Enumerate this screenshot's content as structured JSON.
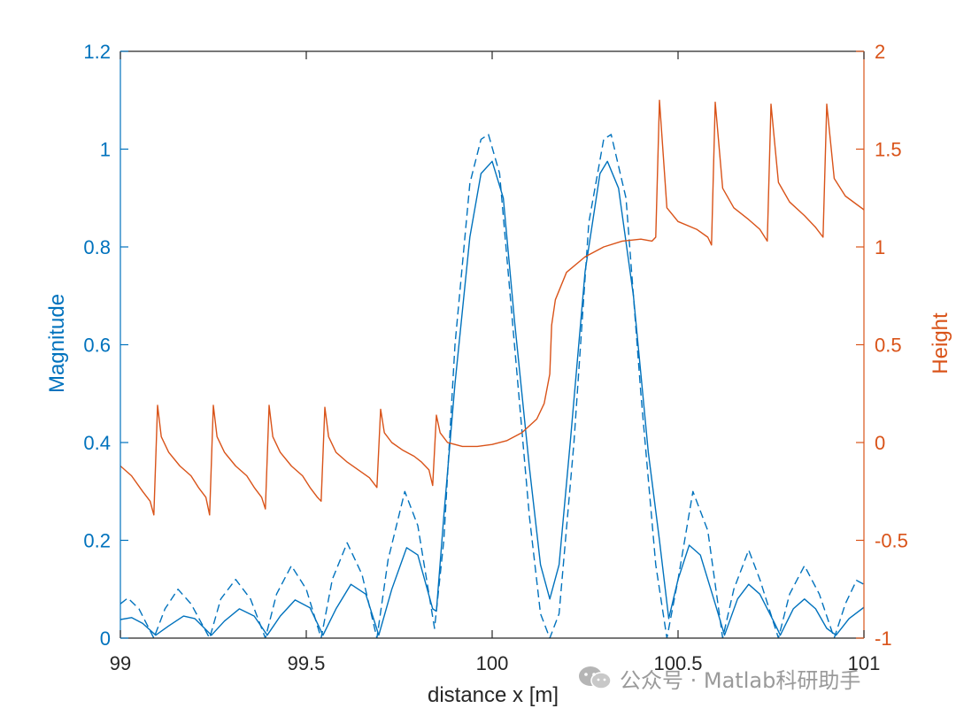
{
  "watermark": {
    "text": "公众号 · Matlab科研助手",
    "icon": "wechat-icon"
  },
  "chart_data": {
    "type": "line",
    "title": "",
    "xlabel": "distance x [m]",
    "ylabel_left": "Magnitude",
    "ylabel_right": "Height",
    "xlim": [
      99,
      101
    ],
    "ylim_left": [
      0,
      1.2
    ],
    "ylim_right": [
      -1,
      2
    ],
    "x_ticks": [
      "99",
      "99.5",
      "100",
      "100.5",
      "101"
    ],
    "y_left_ticks": [
      "0",
      "0.2",
      "0.4",
      "0.6",
      "0.8",
      "1",
      "1.2"
    ],
    "y_right_ticks": [
      "-1",
      "-0.5",
      "0",
      "0.5",
      "1",
      "1.5",
      "2"
    ],
    "grid": false,
    "colors": {
      "left": "#0072BD",
      "right": "#D95319",
      "axis": "#262626"
    },
    "series": [
      {
        "axis": "left",
        "style": "solid",
        "color": "#0072BD",
        "points": [
          [
            99.0,
            0.038
          ],
          [
            99.03,
            0.042
          ],
          [
            99.06,
            0.03
          ],
          [
            99.095,
            0.006
          ],
          [
            99.13,
            0.025
          ],
          [
            99.17,
            0.045
          ],
          [
            99.2,
            0.04
          ],
          [
            99.245,
            0.006
          ],
          [
            99.28,
            0.035
          ],
          [
            99.32,
            0.06
          ],
          [
            99.36,
            0.045
          ],
          [
            99.395,
            0.006
          ],
          [
            99.43,
            0.045
          ],
          [
            99.47,
            0.078
          ],
          [
            99.51,
            0.062
          ],
          [
            99.545,
            0.006
          ],
          [
            99.58,
            0.06
          ],
          [
            99.62,
            0.11
          ],
          [
            99.66,
            0.09
          ],
          [
            99.695,
            0.006
          ],
          [
            99.73,
            0.1
          ],
          [
            99.77,
            0.185
          ],
          [
            99.8,
            0.17
          ],
          [
            99.84,
            0.06
          ],
          [
            99.85,
            0.055
          ],
          [
            99.87,
            0.25
          ],
          [
            99.9,
            0.52
          ],
          [
            99.94,
            0.82
          ],
          [
            99.97,
            0.95
          ],
          [
            100.0,
            0.975
          ],
          [
            100.03,
            0.9
          ],
          [
            100.06,
            0.65
          ],
          [
            100.1,
            0.35
          ],
          [
            100.13,
            0.15
          ],
          [
            100.155,
            0.08
          ],
          [
            100.18,
            0.15
          ],
          [
            100.21,
            0.4
          ],
          [
            100.25,
            0.75
          ],
          [
            100.29,
            0.95
          ],
          [
            100.31,
            0.975
          ],
          [
            100.34,
            0.92
          ],
          [
            100.38,
            0.7
          ],
          [
            100.42,
            0.38
          ],
          [
            100.45,
            0.2
          ],
          [
            100.475,
            0.04
          ],
          [
            100.5,
            0.12
          ],
          [
            100.53,
            0.19
          ],
          [
            100.56,
            0.17
          ],
          [
            100.6,
            0.07
          ],
          [
            100.625,
            0.006
          ],
          [
            100.66,
            0.08
          ],
          [
            100.69,
            0.11
          ],
          [
            100.72,
            0.09
          ],
          [
            100.76,
            0.03
          ],
          [
            100.775,
            0.006
          ],
          [
            100.81,
            0.06
          ],
          [
            100.84,
            0.08
          ],
          [
            100.87,
            0.06
          ],
          [
            100.9,
            0.02
          ],
          [
            100.925,
            0.006
          ],
          [
            100.96,
            0.04
          ],
          [
            101.0,
            0.063
          ]
        ]
      },
      {
        "axis": "left",
        "style": "dashed",
        "color": "#0072BD",
        "points": [
          [
            99.0,
            0.07
          ],
          [
            99.02,
            0.082
          ],
          [
            99.05,
            0.06
          ],
          [
            99.09,
            0.0
          ],
          [
            99.12,
            0.06
          ],
          [
            99.155,
            0.1
          ],
          [
            99.19,
            0.07
          ],
          [
            99.24,
            0.0
          ],
          [
            99.27,
            0.08
          ],
          [
            99.31,
            0.12
          ],
          [
            99.35,
            0.08
          ],
          [
            99.39,
            0.0
          ],
          [
            99.42,
            0.09
          ],
          [
            99.46,
            0.148
          ],
          [
            99.5,
            0.1
          ],
          [
            99.54,
            0.0
          ],
          [
            99.57,
            0.12
          ],
          [
            99.61,
            0.195
          ],
          [
            99.65,
            0.13
          ],
          [
            99.69,
            0.0
          ],
          [
            99.72,
            0.16
          ],
          [
            99.765,
            0.3
          ],
          [
            99.8,
            0.23
          ],
          [
            99.845,
            0.02
          ],
          [
            99.87,
            0.2
          ],
          [
            99.9,
            0.6
          ],
          [
            99.94,
            0.93
          ],
          [
            99.97,
            1.02
          ],
          [
            99.99,
            1.03
          ],
          [
            100.02,
            0.95
          ],
          [
            100.06,
            0.6
          ],
          [
            100.1,
            0.25
          ],
          [
            100.13,
            0.05
          ],
          [
            100.155,
            0.0
          ],
          [
            100.18,
            0.05
          ],
          [
            100.22,
            0.4
          ],
          [
            100.26,
            0.85
          ],
          [
            100.3,
            1.02
          ],
          [
            100.32,
            1.03
          ],
          [
            100.36,
            0.9
          ],
          [
            100.4,
            0.5
          ],
          [
            100.44,
            0.15
          ],
          [
            100.47,
            0.0
          ],
          [
            100.5,
            0.12
          ],
          [
            100.54,
            0.3
          ],
          [
            100.58,
            0.22
          ],
          [
            100.62,
            0.0
          ],
          [
            100.65,
            0.1
          ],
          [
            100.69,
            0.18
          ],
          [
            100.72,
            0.12
          ],
          [
            100.77,
            0.0
          ],
          [
            100.8,
            0.09
          ],
          [
            100.84,
            0.148
          ],
          [
            100.88,
            0.09
          ],
          [
            100.92,
            0.0
          ],
          [
            100.95,
            0.07
          ],
          [
            100.98,
            0.118
          ],
          [
            101.0,
            0.11
          ]
        ]
      },
      {
        "axis": "right",
        "style": "solid",
        "color": "#D95319",
        "points": [
          [
            99.0,
            -0.12
          ],
          [
            99.03,
            -0.17
          ],
          [
            99.06,
            -0.25
          ],
          [
            99.08,
            -0.3
          ],
          [
            99.09,
            -0.37
          ],
          [
            99.1,
            0.19
          ],
          [
            99.11,
            0.03
          ],
          [
            99.13,
            -0.05
          ],
          [
            99.16,
            -0.12
          ],
          [
            99.19,
            -0.17
          ],
          [
            99.21,
            -0.23
          ],
          [
            99.23,
            -0.28
          ],
          [
            99.24,
            -0.37
          ],
          [
            99.25,
            0.19
          ],
          [
            99.26,
            0.03
          ],
          [
            99.28,
            -0.05
          ],
          [
            99.31,
            -0.12
          ],
          [
            99.34,
            -0.17
          ],
          [
            99.36,
            -0.23
          ],
          [
            99.38,
            -0.28
          ],
          [
            99.39,
            -0.34
          ],
          [
            99.4,
            0.19
          ],
          [
            99.41,
            0.03
          ],
          [
            99.43,
            -0.05
          ],
          [
            99.46,
            -0.12
          ],
          [
            99.49,
            -0.17
          ],
          [
            99.51,
            -0.23
          ],
          [
            99.53,
            -0.28
          ],
          [
            99.54,
            -0.3
          ],
          [
            99.55,
            0.18
          ],
          [
            99.56,
            0.03
          ],
          [
            99.58,
            -0.05
          ],
          [
            99.61,
            -0.1
          ],
          [
            99.64,
            -0.14
          ],
          [
            99.67,
            -0.18
          ],
          [
            99.69,
            -0.23
          ],
          [
            99.7,
            0.17
          ],
          [
            99.71,
            0.05
          ],
          [
            99.73,
            0.0
          ],
          [
            99.76,
            -0.04
          ],
          [
            99.79,
            -0.07
          ],
          [
            99.81,
            -0.1
          ],
          [
            99.83,
            -0.14
          ],
          [
            99.84,
            -0.22
          ],
          [
            99.85,
            0.14
          ],
          [
            99.86,
            0.05
          ],
          [
            99.88,
            0.0
          ],
          [
            99.92,
            -0.02
          ],
          [
            99.96,
            -0.02
          ],
          [
            100.0,
            -0.01
          ],
          [
            100.04,
            0.01
          ],
          [
            100.08,
            0.05
          ],
          [
            100.12,
            0.12
          ],
          [
            100.14,
            0.2
          ],
          [
            100.155,
            0.35
          ],
          [
            100.16,
            0.6
          ],
          [
            100.17,
            0.73
          ],
          [
            100.2,
            0.87
          ],
          [
            100.25,
            0.95
          ],
          [
            100.3,
            1.0
          ],
          [
            100.35,
            1.03
          ],
          [
            100.4,
            1.04
          ],
          [
            100.43,
            1.03
          ],
          [
            100.44,
            1.05
          ],
          [
            100.45,
            1.75
          ],
          [
            100.47,
            1.2
          ],
          [
            100.5,
            1.13
          ],
          [
            100.55,
            1.09
          ],
          [
            100.58,
            1.05
          ],
          [
            100.59,
            1.01
          ],
          [
            100.6,
            1.74
          ],
          [
            100.62,
            1.3
          ],
          [
            100.65,
            1.2
          ],
          [
            100.69,
            1.14
          ],
          [
            100.72,
            1.09
          ],
          [
            100.74,
            1.03
          ],
          [
            100.75,
            1.73
          ],
          [
            100.77,
            1.33
          ],
          [
            100.8,
            1.23
          ],
          [
            100.84,
            1.16
          ],
          [
            100.87,
            1.1
          ],
          [
            100.89,
            1.05
          ],
          [
            100.9,
            1.73
          ],
          [
            100.92,
            1.35
          ],
          [
            100.95,
            1.26
          ],
          [
            101.0,
            1.19
          ]
        ]
      }
    ]
  }
}
